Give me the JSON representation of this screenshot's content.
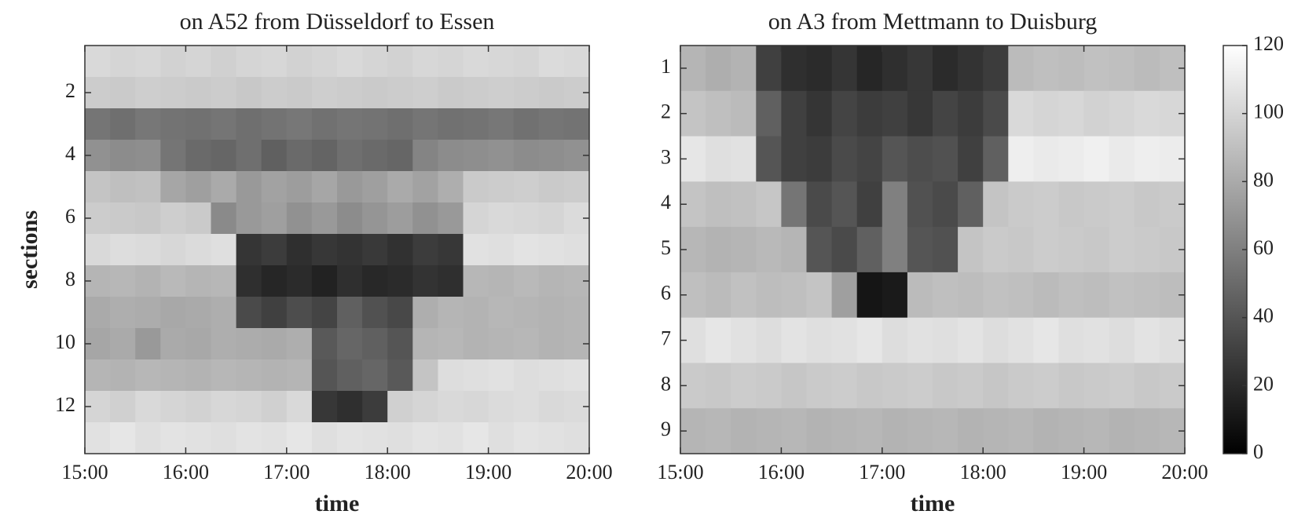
{
  "chart_data": [
    {
      "type": "heatmap",
      "title": "on A52 from Düsseldorf to Essen",
      "xlabel": "time",
      "ylabel": "sections",
      "x": [
        15,
        15.25,
        15.5,
        15.75,
        16,
        16.25,
        16.5,
        16.75,
        17,
        17.25,
        17.5,
        17.75,
        18,
        18.25,
        18.5,
        18.75,
        19,
        19.25,
        19.5,
        19.75
      ],
      "y": [
        1,
        2,
        3,
        4,
        5,
        6,
        7,
        8,
        9,
        10,
        11,
        12,
        13
      ],
      "xlim": [
        15,
        20
      ],
      "ylim": [
        0.5,
        13.5
      ],
      "y_reversed": true,
      "xticks": [
        {
          "value": 15,
          "label": "15:00"
        },
        {
          "value": 16,
          "label": "16:00"
        },
        {
          "value": 17,
          "label": "17:00"
        },
        {
          "value": 18,
          "label": "18:00"
        },
        {
          "value": 19,
          "label": "19:00"
        },
        {
          "value": 20,
          "label": "20:00"
        }
      ],
      "yticks": [
        2,
        4,
        6,
        8,
        10,
        12
      ],
      "colormap": "gray",
      "clim": [
        0,
        120
      ],
      "values": [
        [
          102,
          100,
          101,
          99,
          100,
          98,
          100,
          101,
          99,
          100,
          102,
          100,
          99,
          101,
          100,
          102,
          101,
          100,
          103,
          102
        ],
        [
          96,
          95,
          97,
          96,
          95,
          96,
          94,
          96,
          95,
          97,
          96,
          95,
          96,
          97,
          95,
          96,
          97,
          96,
          95,
          96
        ],
        [
          55,
          52,
          56,
          54,
          53,
          55,
          52,
          54,
          56,
          53,
          55,
          54,
          52,
          55,
          53,
          54,
          56,
          53,
          55,
          54
        ],
        [
          68,
          66,
          67,
          55,
          50,
          48,
          52,
          45,
          50,
          47,
          52,
          50,
          48,
          62,
          66,
          67,
          68,
          66,
          67,
          68
        ],
        [
          92,
          90,
          91,
          78,
          75,
          80,
          72,
          76,
          74,
          78,
          72,
          75,
          80,
          76,
          82,
          95,
          96,
          97,
          95,
          96
        ],
        [
          96,
          95,
          94,
          97,
          95,
          65,
          72,
          75,
          68,
          72,
          66,
          70,
          74,
          68,
          72,
          100,
          102,
          101,
          100,
          103
        ],
        [
          102,
          104,
          103,
          101,
          103,
          105,
          25,
          28,
          22,
          26,
          24,
          27,
          23,
          28,
          26,
          106,
          105,
          107,
          106,
          105
        ],
        [
          85,
          86,
          84,
          87,
          85,
          86,
          22,
          18,
          20,
          16,
          22,
          19,
          20,
          24,
          22,
          86,
          85,
          87,
          85,
          86
        ],
        [
          80,
          82,
          81,
          79,
          80,
          82,
          35,
          30,
          36,
          32,
          45,
          38,
          34,
          82,
          85,
          84,
          86,
          85,
          84,
          85
        ],
        [
          78,
          80,
          72,
          80,
          79,
          82,
          81,
          80,
          82,
          42,
          48,
          45,
          40,
          85,
          86,
          84,
          85,
          86,
          84,
          85
        ],
        [
          85,
          84,
          86,
          85,
          84,
          86,
          85,
          84,
          85,
          40,
          45,
          48,
          42,
          92,
          104,
          105,
          106,
          104,
          105,
          106
        ],
        [
          100,
          98,
          102,
          100,
          99,
          101,
          100,
          98,
          102,
          26,
          22,
          28,
          98,
          100,
          102,
          101,
          103,
          104,
          102,
          103
        ],
        [
          106,
          108,
          105,
          107,
          106,
          105,
          107,
          106,
          108,
          105,
          107,
          106,
          105,
          107,
          106,
          108,
          105,
          107,
          106,
          105
        ]
      ]
    },
    {
      "type": "heatmap",
      "title": "on A3 from Mettmann to Duisburg",
      "xlabel": "time",
      "x": [
        15,
        15.25,
        15.5,
        15.75,
        16,
        16.25,
        16.5,
        16.75,
        17,
        17.25,
        17.5,
        17.75,
        18,
        18.25,
        18.5,
        18.75,
        19,
        19.25,
        19.5,
        19.75
      ],
      "y": [
        1,
        2,
        3,
        4,
        5,
        6,
        7,
        8,
        9
      ],
      "xlim": [
        15,
        20
      ],
      "ylim": [
        0.5,
        9.5
      ],
      "y_reversed": true,
      "xticks": [
        {
          "value": 15,
          "label": "15:00"
        },
        {
          "value": 16,
          "label": "16:00"
        },
        {
          "value": 17,
          "label": "17:00"
        },
        {
          "value": 18,
          "label": "18:00"
        },
        {
          "value": 19,
          "label": "19:00"
        },
        {
          "value": 20,
          "label": "20:00"
        }
      ],
      "yticks": [
        1,
        2,
        3,
        4,
        5,
        6,
        7,
        8,
        9
      ],
      "colormap": "gray",
      "clim": [
        0,
        120
      ],
      "colorbar": {
        "lim": [
          0,
          120
        ],
        "ticks": [
          0,
          20,
          40,
          60,
          80,
          100,
          120
        ]
      },
      "values": [
        [
          85,
          82,
          84,
          30,
          22,
          20,
          25,
          18,
          22,
          26,
          20,
          24,
          28,
          88,
          90,
          89,
          91,
          90,
          88,
          90
        ],
        [
          92,
          90,
          88,
          45,
          30,
          25,
          32,
          28,
          30,
          26,
          32,
          28,
          35,
          102,
          100,
          101,
          99,
          100,
          102,
          101
        ],
        [
          108,
          105,
          106,
          40,
          30,
          28,
          35,
          32,
          40,
          36,
          38,
          30,
          45,
          112,
          110,
          111,
          113,
          110,
          112,
          111
        ],
        [
          92,
          90,
          91,
          93,
          55,
          35,
          40,
          30,
          60,
          38,
          35,
          45,
          92,
          95,
          96,
          94,
          95,
          96,
          94,
          95
        ],
        [
          86,
          84,
          85,
          87,
          85,
          40,
          35,
          45,
          60,
          40,
          38,
          92,
          95,
          94,
          96,
          95,
          94,
          96,
          95,
          94
        ],
        [
          90,
          88,
          91,
          89,
          90,
          92,
          75,
          10,
          12,
          88,
          90,
          89,
          91,
          90,
          88,
          90,
          89,
          91,
          90,
          89
        ],
        [
          105,
          108,
          106,
          104,
          107,
          105,
          106,
          108,
          104,
          106,
          105,
          107,
          104,
          106,
          108,
          105,
          106,
          104,
          107,
          105
        ],
        [
          95,
          94,
          96,
          95,
          93,
          95,
          96,
          94,
          95,
          96,
          94,
          95,
          93,
          95,
          96,
          94,
          95,
          96,
          94,
          95
        ],
        [
          85,
          86,
          84,
          85,
          86,
          84,
          85,
          86,
          84,
          85,
          86,
          84,
          85,
          86,
          84,
          85,
          86,
          84,
          85,
          86
        ]
      ]
    }
  ]
}
